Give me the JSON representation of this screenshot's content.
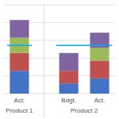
{
  "chart_data": {
    "type": "bar",
    "stacked": true,
    "categories": [
      "Act.",
      "Bdgt.",
      "Act."
    ],
    "groups": [
      "Product 1",
      "Product 2",
      "Product 2"
    ],
    "series": [
      {
        "color": "#4472C4",
        "values": [
          18,
          8,
          12
        ]
      },
      {
        "color": "#C0504D",
        "values": [
          14,
          10,
          14
        ]
      },
      {
        "color": "#9BBB59",
        "values": [
          12,
          0,
          10
        ]
      },
      {
        "color": "#8064A2",
        "values": [
          14,
          14,
          12
        ]
      },
      {
        "type": "target",
        "color": "#00B0F0",
        "values": [
          38,
          38,
          38
        ]
      }
    ],
    "ylim": [
      0,
      70
    ],
    "yticks": [
      0,
      14,
      28,
      42,
      56,
      70
    ],
    "grid": true,
    "tick_labels": "x"
  }
}
